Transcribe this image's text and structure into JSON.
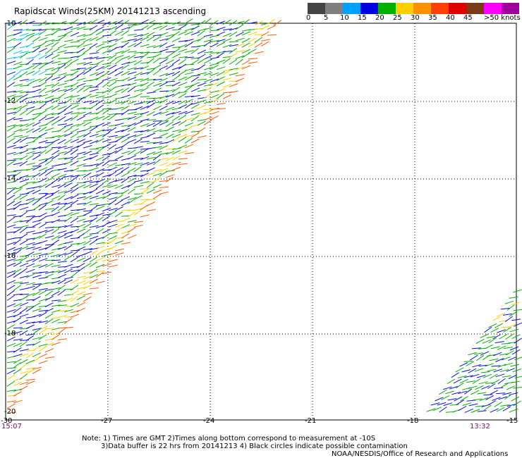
{
  "title": "Rapidscat Winds(25KM) 20141213 ascending",
  "legend": {
    "colors": [
      "#444444",
      "#7f7f7f",
      "#00d8ff",
      "#00a0ff",
      "#0000e0",
      "#00b000",
      "#ffd000",
      "#ff9000",
      "#ff4000",
      "#e00000",
      "#7a3a1a",
      "#ff00ff",
      "#a000a0",
      "#6a00a0"
    ],
    "labels": [
      "0",
      "5",
      "10",
      "15",
      "20",
      "25",
      "30",
      "35",
      "40",
      "45",
      ">50 knots"
    ]
  },
  "y_axis": {
    "labels": [
      "-10",
      "-12",
      "-14",
      "-16",
      "-18",
      "-20"
    ]
  },
  "x_axis": {
    "labels": [
      "-30",
      "-27",
      "-24",
      "-21",
      "-18",
      "-15"
    ]
  },
  "times": {
    "left": "15:07",
    "right": "13:32"
  },
  "notes": {
    "line1": "Note: 1) Times are GMT 2)Times along bottom correspond to measurement at -10S",
    "line2": "3)Data buffer is 22 hrs from 20141213 4) Black circles indicate possible contamination",
    "line3": "NOAA/NESDIS/Office of Research and Applications"
  }
}
